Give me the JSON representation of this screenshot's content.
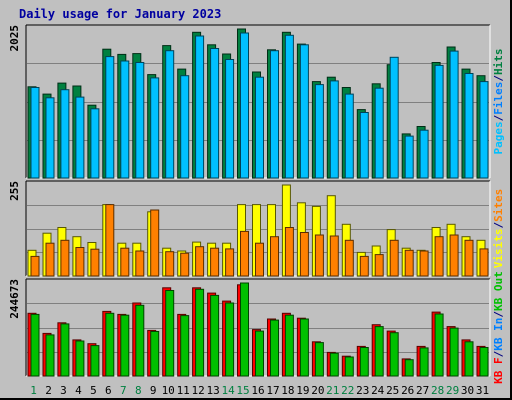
{
  "chart_data": {
    "type": "bar",
    "title": "Daily usage for January 2023",
    "categories": [
      "1",
      "2",
      "3",
      "4",
      "5",
      "6",
      "7",
      "8",
      "9",
      "10",
      "11",
      "12",
      "13",
      "14",
      "15",
      "16",
      "17",
      "18",
      "19",
      "20",
      "21",
      "22",
      "23",
      "24",
      "25",
      "26",
      "27",
      "28",
      "29",
      "30",
      "31"
    ],
    "weekend_days": [
      "1",
      "7",
      "8",
      "14",
      "15",
      "21",
      "22",
      "28",
      "29"
    ],
    "panels": [
      {
        "name": "hits",
        "ymax_label": "2025",
        "ymax": 2025,
        "legend": [
          {
            "name": "Pages",
            "color": "#00c0ff"
          },
          {
            "name": "Files",
            "color": "#0080ff"
          },
          {
            "name": "Hits",
            "color": "#008040"
          }
        ],
        "series": [
          {
            "name": "Hits",
            "color": "#008040",
            "values": [
              1240,
              1140,
              1290,
              1250,
              990,
              1750,
              1680,
              1690,
              1405,
              1800,
              1480,
              1980,
              1810,
              1685,
              2025,
              1440,
              1742,
              1980,
              1820,
              1310,
              1370,
              1230,
              930,
              1280,
              1540,
              600,
              700,
              1570,
              1780,
              1480,
              1390
            ]
          },
          {
            "name": "Pages",
            "color": "#00c0ff",
            "values": [
              1230,
              1090,
              1200,
              1100,
              940,
              1650,
              1590,
              1570,
              1360,
              1730,
              1390,
              1930,
              1760,
              1610,
              1970,
              1370,
              1730,
              1940,
              1810,
              1270,
              1320,
              1140,
              890,
              1220,
              1640,
              570,
              650,
              1530,
              1725,
              1420,
              1310
            ]
          }
        ]
      },
      {
        "name": "visits",
        "ymax_label": "255",
        "ymax": 255,
        "legend": [
          {
            "name": "Visits",
            "color": "#ffff00"
          },
          {
            "name": "Sites",
            "color": "#ff8000"
          }
        ],
        "series": [
          {
            "name": "Visits",
            "color": "#ffff00",
            "values": [
              72,
              120,
              136,
              110,
              94,
              200,
              92,
              92,
              180,
              78,
              70,
              95,
              92,
              92,
              200,
              200,
              200,
              255,
              205,
              195,
              225,
              145,
              66,
              84,
              130,
              78,
              72,
              136,
              145,
              110,
              100
            ]
          },
          {
            "name": "Sites",
            "color": "#ff8000",
            "values": [
              55,
              92,
              100,
              80,
              75,
              200,
              78,
              70,
              185,
              68,
              64,
              82,
              78,
              76,
              125,
              92,
              110,
              136,
              122,
              115,
              112,
              100,
              55,
              60,
              100,
              72,
              70,
              110,
              115,
              100,
              76
            ]
          }
        ]
      },
      {
        "name": "kbytes",
        "ymax_label": "244673",
        "ymax": 244673,
        "legend": [
          {
            "name": "KB F",
            "color": "#ff0000"
          },
          {
            "name": "KB In",
            "color": "#0080ff"
          },
          {
            "name": "KB Out",
            "color": "#00c000"
          }
        ],
        "series": [
          {
            "name": "KB F",
            "color": "#ff0000",
            "values": [
              165000,
              112000,
              140000,
              95000,
              85000,
              170000,
              162000,
              192000,
              120000,
              232000,
              162000,
              232000,
              218000,
              197000,
              240000,
              122000,
              150000,
              165000,
              152000,
              90000,
              62000,
              52000,
              78000,
              135000,
              118000,
              45000,
              78000,
              168000,
              130000,
              95000,
              78000
            ]
          },
          {
            "name": "KB Out",
            "color": "#00c000",
            "values": [
              162000,
              108000,
              137000,
              92000,
              80000,
              165000,
              160000,
              186000,
              117000,
              225000,
              159000,
              228000,
              212000,
              192000,
              244673,
              118000,
              147000,
              160000,
              150000,
              88000,
              60000,
              50000,
              75000,
              130000,
              114000,
              43000,
              74000,
              163000,
              126000,
              90000,
              75000
            ]
          }
        ]
      }
    ],
    "legend_separator": "/"
  }
}
